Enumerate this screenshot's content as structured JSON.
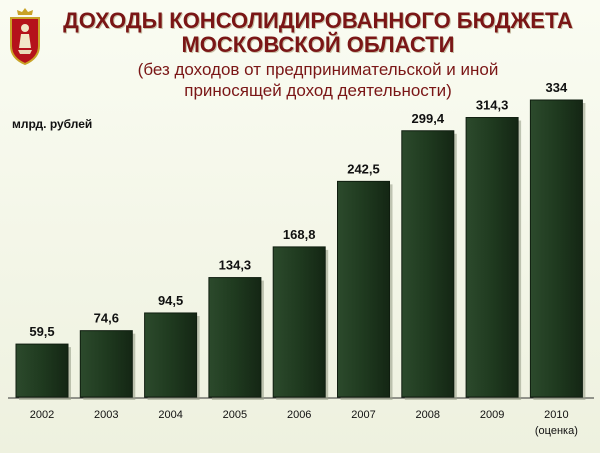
{
  "chart_data": {
    "type": "bar",
    "title_line1": "ДОХОДЫ КОНСОЛИДИРОВАННОГО БЮДЖЕТА",
    "title_line2": "МОСКОВСКОЙ ОБЛАСТИ",
    "subtitle_line1": "(без доходов от предпринимательской и иной",
    "subtitle_line2": "приносящей доход деятельности)",
    "ylabel": "млрд. рублей",
    "categories": [
      "2002",
      "2003",
      "2004",
      "2005",
      "2006",
      "2007",
      "2008",
      "2009",
      "2010"
    ],
    "category_notes": [
      "",
      "",
      "",
      "",
      "",
      "",
      "",
      "",
      "(оценка)"
    ],
    "values": [
      59.5,
      74.6,
      94.5,
      134.3,
      168.8,
      242.5,
      299.4,
      314.3,
      334
    ],
    "value_labels": [
      "59,5",
      "74,6",
      "94,5",
      "134,3",
      "168,8",
      "242,5",
      "299,4",
      "314,3",
      "334"
    ],
    "ylim": [
      0,
      334
    ],
    "grid": false,
    "legend": "none",
    "bar_color": "#1f3a1f",
    "title_color": "#7a1616"
  },
  "emblem": {
    "icon": "coat-of-arms-icon",
    "color": "#b5121b"
  }
}
